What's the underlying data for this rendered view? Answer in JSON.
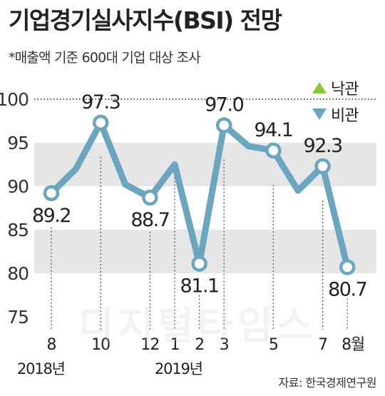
{
  "title": "기업경기실사지수(BSI) 전망",
  "subtitle": "*매출액 기준 600대 기업 대상 조사",
  "source": "자료: 한국경제연구원",
  "watermark": "디지털타임스",
  "colors": {
    "line": "#6aa6bf",
    "marker_fill": "#ffffff",
    "band": "#e6e6e6",
    "optimistic": "#8cc63e",
    "pessimistic": "#6aa6bf"
  },
  "chart_data": {
    "type": "line",
    "title": "기업경기실사지수(BSI) 전망",
    "ylim": [
      75,
      100
    ],
    "yticks": [
      "75",
      "80",
      "85",
      "90",
      "95",
      "100"
    ],
    "legend": [
      {
        "name": "낙관",
        "symbol": "triangle-up"
      },
      {
        "name": "비관",
        "symbol": "triangle-down"
      }
    ],
    "legend_position": "top-right",
    "x_labels": [
      "8",
      "10",
      "12",
      "1",
      "2",
      "3",
      "5",
      "7",
      "8월"
    ],
    "year_labels": [
      "2018년",
      "2019년"
    ],
    "series": [
      {
        "x": [
          "2018-08",
          "2018-09",
          "2018-10",
          "2018-11",
          "2018-12",
          "2019-01",
          "2019-02",
          "2019-03",
          "2019-04",
          "2019-05",
          "2019-06",
          "2019-07",
          "2019-08"
        ],
        "values": [
          89.2,
          92.0,
          97.3,
          90.2,
          88.7,
          92.5,
          81.1,
          97.0,
          94.6,
          94.1,
          89.5,
          92.3,
          80.7
        ]
      }
    ],
    "labeled_points": [
      {
        "x": "2018-08",
        "label": "89.2"
      },
      {
        "x": "2018-10",
        "label": "97.3"
      },
      {
        "x": "2018-12",
        "label": "88.7"
      },
      {
        "x": "2019-02",
        "label": "81.1"
      },
      {
        "x": "2019-03",
        "label": "97.0"
      },
      {
        "x": "2019-05",
        "label": "94.1"
      },
      {
        "x": "2019-07",
        "label": "92.3"
      },
      {
        "x": "2019-08",
        "label": "80.7"
      }
    ]
  }
}
